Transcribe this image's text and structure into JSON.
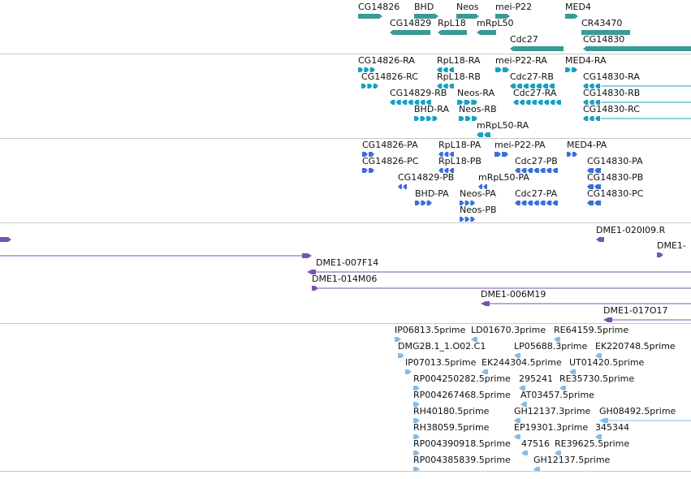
{
  "colors": {
    "gene": "#3a9a94",
    "transcript": "#1aa0c0",
    "protein": "#3a6fd8",
    "clone": "#7b52b0",
    "est": "#86bde8",
    "divider": "#c8c8c8"
  },
  "tracks": {
    "genes": {
      "features": [
        {
          "label": "CG14826",
          "color": "gene",
          "shape": "bar-arrow-right"
        },
        {
          "label": "BHD",
          "color": "gene",
          "shape": "bar-arrow-right"
        },
        {
          "label": "Neos",
          "color": "gene",
          "shape": "bar-arrow-right"
        },
        {
          "label": "mei-P22",
          "color": "gene",
          "shape": "bar-arrow-right"
        },
        {
          "label": "MED4",
          "color": "gene",
          "shape": "bar-arrow-right"
        },
        {
          "label": "CG14829",
          "color": "gene",
          "shape": "bar-arrow-left"
        },
        {
          "label": "RpL18",
          "color": "gene",
          "shape": "bar-arrow-left"
        },
        {
          "label": "mRpL50",
          "color": "gene",
          "shape": "bar-arrow-left"
        },
        {
          "label": "CR43470",
          "color": "gene",
          "shape": "bar"
        },
        {
          "label": "Cdc27",
          "color": "gene",
          "shape": "bar-arrow-left"
        },
        {
          "label": "CG14830",
          "color": "gene",
          "shape": "bar-arrow-left"
        }
      ]
    },
    "transcripts": {
      "features": [
        {
          "label": "CG14826-RA",
          "color": "transcript",
          "shape": "exons-right"
        },
        {
          "label": "RpL18-RA",
          "color": "transcript",
          "shape": "exons-left"
        },
        {
          "label": "mei-P22-RA",
          "color": "transcript",
          "shape": "exons-right"
        },
        {
          "label": "MED4-RA",
          "color": "transcript",
          "shape": "exons-right"
        },
        {
          "label": "CG14826-RC",
          "color": "transcript",
          "shape": "exons-right"
        },
        {
          "label": "RpL18-RB",
          "color": "transcript",
          "shape": "exons-left"
        },
        {
          "label": "Cdc27-RB",
          "color": "transcript",
          "shape": "exons-left"
        },
        {
          "label": "CG14830-RA",
          "color": "transcript",
          "shape": "exons-left-line"
        },
        {
          "label": "CG14829-RB",
          "color": "transcript",
          "shape": "exons-left"
        },
        {
          "label": "Neos-RA",
          "color": "transcript",
          "shape": "exons-right"
        },
        {
          "label": "Cdc27-RA",
          "color": "transcript",
          "shape": "exons-left"
        },
        {
          "label": "CG14830-RB",
          "color": "transcript",
          "shape": "exons-left-line"
        },
        {
          "label": "BHD-RA",
          "color": "transcript",
          "shape": "exons-right"
        },
        {
          "label": "Neos-RB",
          "color": "transcript",
          "shape": "exons-right"
        },
        {
          "label": "CG14830-RC",
          "color": "transcript",
          "shape": "exons-left-line"
        },
        {
          "label": "mRpL50-RA",
          "color": "transcript",
          "shape": "exons-left"
        }
      ]
    },
    "proteins": {
      "features": [
        {
          "label": "CG14826-PA",
          "color": "protein",
          "shape": "exons-right"
        },
        {
          "label": "RpL18-PA",
          "color": "protein",
          "shape": "exons-left"
        },
        {
          "label": "mei-P22-PA",
          "color": "protein",
          "shape": "exons-right"
        },
        {
          "label": "MED4-PA",
          "color": "protein",
          "shape": "exons-right"
        },
        {
          "label": "CG14826-PC",
          "color": "protein",
          "shape": "exons-right"
        },
        {
          "label": "RpL18-PB",
          "color": "protein",
          "shape": "exons-left"
        },
        {
          "label": "Cdc27-PB",
          "color": "protein",
          "shape": "exons-left"
        },
        {
          "label": "CG14830-PA",
          "color": "protein",
          "shape": "exons-left"
        },
        {
          "label": "CG14829-PB",
          "color": "protein",
          "shape": "exons-left"
        },
        {
          "label": "mRpL50-PA",
          "color": "protein",
          "shape": "exons-left"
        },
        {
          "label": "CG14830-PB",
          "color": "protein",
          "shape": "exons-left"
        },
        {
          "label": "BHD-PA",
          "color": "protein",
          "shape": "exons-right"
        },
        {
          "label": "Neos-PA",
          "color": "protein",
          "shape": "exons-right"
        },
        {
          "label": "Cdc27-PA",
          "color": "protein",
          "shape": "exons-left"
        },
        {
          "label": "CG14830-PC",
          "color": "protein",
          "shape": "exons-left"
        },
        {
          "label": "Neos-PB",
          "color": "protein",
          "shape": "exons-right"
        }
      ]
    },
    "clones": {
      "features": [
        {
          "label": "",
          "color": "clone",
          "shape": "arrow-right"
        },
        {
          "label": "DME1-020I09.R",
          "color": "clone",
          "shape": "arrow-left"
        },
        {
          "label": "DME1-",
          "color": "clone",
          "shape": "arrow-right"
        },
        {
          "label": "",
          "color": "clone",
          "shape": "line-arrow-right"
        },
        {
          "label": "DME1-007F14",
          "color": "clone",
          "shape": "arrow-left-line"
        },
        {
          "label": "DME1-014M06",
          "color": "clone",
          "shape": "arrow-right-line"
        },
        {
          "label": "DME1-006M19",
          "color": "clone",
          "shape": "arrow-left-line"
        },
        {
          "label": "DME1-017O17",
          "color": "clone",
          "shape": "arrow-left-line"
        }
      ]
    },
    "ests": {
      "features": [
        {
          "label": "IP06813.5prime",
          "color": "est",
          "shape": "arrow-right"
        },
        {
          "label": "LD01670.3prime",
          "color": "est",
          "shape": "arrow-left"
        },
        {
          "label": "RE64159.5prime",
          "color": "est",
          "shape": "arrow-left"
        },
        {
          "label": "DMG2B.1_1.O02.C1",
          "color": "est",
          "shape": "arrow-right"
        },
        {
          "label": "LP05688.3prime",
          "color": "est",
          "shape": "arrow-left"
        },
        {
          "label": "EK220748.5prime",
          "color": "est",
          "shape": "arrow-left"
        },
        {
          "label": "IP07013.5prime",
          "color": "est",
          "shape": "arrow-right"
        },
        {
          "label": "EK244304.5prime",
          "color": "est",
          "shape": "arrow-left"
        },
        {
          "label": "UT01420.5prime",
          "color": "est",
          "shape": "arrow-left"
        },
        {
          "label": "RP004250282.5prime",
          "color": "est",
          "shape": "arrow-right"
        },
        {
          "label": "295241",
          "color": "est",
          "shape": "arrow-left"
        },
        {
          "label": "RE35730.5prime",
          "color": "est",
          "shape": "arrow-left"
        },
        {
          "label": "RP004267468.5prime",
          "color": "est",
          "shape": "arrow-right"
        },
        {
          "label": "AT03457.5prime",
          "color": "est",
          "shape": "arrow-left"
        },
        {
          "label": "RH40180.5prime",
          "color": "est",
          "shape": "arrow-right"
        },
        {
          "label": "GH12137.3prime",
          "color": "est",
          "shape": "arrow-left"
        },
        {
          "label": "GH08492.5prime",
          "color": "est",
          "shape": "arrow-left-line"
        },
        {
          "label": "RH38059.5prime",
          "color": "est",
          "shape": "arrow-right"
        },
        {
          "label": "EP19301.3prime",
          "color": "est",
          "shape": "arrow-left"
        },
        {
          "label": "345344",
          "color": "est",
          "shape": "arrow-left"
        },
        {
          "label": "RP004390918.5prime",
          "color": "est",
          "shape": "arrow-right"
        },
        {
          "label": "47516",
          "color": "est",
          "shape": "arrow-left"
        },
        {
          "label": "RE39625.5prime",
          "color": "est",
          "shape": "arrow-left"
        },
        {
          "label": "RP004385839.5prime",
          "color": "est",
          "shape": "arrow-right"
        },
        {
          "label": "GH12137.5prime",
          "color": "est",
          "shape": "arrow-left"
        }
      ]
    }
  }
}
